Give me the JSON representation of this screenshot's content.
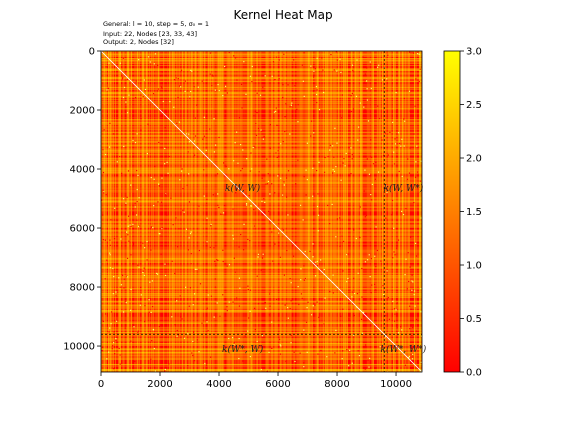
{
  "chart_data": {
    "type": "heatmap",
    "title": "Kernel Heat Map",
    "info_lines": [
      "General: l = 10, step = 5, σ₀ = 1",
      "Input: 22, Nodes [23, 33, 43]",
      "Output: 2, Nodes [32]"
    ],
    "x_ticks": [
      0,
      2000,
      4000,
      6000,
      8000,
      10000
    ],
    "y_ticks": [
      0,
      2000,
      4000,
      6000,
      8000,
      10000
    ],
    "xlim": [
      0,
      10880
    ],
    "ylim": [
      10880,
      0
    ],
    "split_at": 9600,
    "colormap": "autumn",
    "colorbar": {
      "min": 0.0,
      "max": 3.0,
      "ticks": [
        "0.0",
        "0.5",
        "1.0",
        "1.5",
        "2.0",
        "2.5",
        "3.0"
      ]
    },
    "block_labels": [
      {
        "text": "k(W, W)",
        "x": 4800,
        "y": 4750
      },
      {
        "text": "k(W, W*)",
        "x": 10250,
        "y": 4750
      },
      {
        "text": "k(W*, W)",
        "x": 4800,
        "y": 10200
      },
      {
        "text": "k(W*, W*)",
        "x": 10250,
        "y": 10200
      }
    ]
  }
}
